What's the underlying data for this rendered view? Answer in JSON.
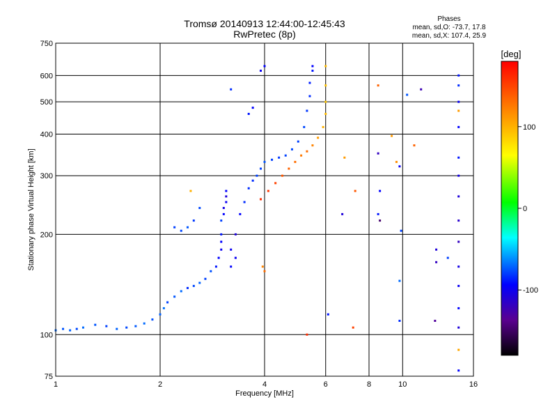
{
  "chart_data": {
    "type": "scatter",
    "title": "Tromsø 20140913 12:44:00-12:45:43",
    "subtitle": "RwPretec (8p)",
    "xlabel": "Frequency [MHz]",
    "ylabel": "Stationary phase Virtual Height [km]",
    "x_scale": "log",
    "y_scale": "log",
    "xlim": [
      1,
      16
    ],
    "ylim": [
      75,
      750
    ],
    "x_ticks": [
      1,
      2,
      4,
      6,
      8,
      10,
      16
    ],
    "y_ticks": [
      75,
      100,
      200,
      300,
      400,
      500,
      600,
      750
    ],
    "grid": true,
    "phases_header": {
      "title": "Phases",
      "line_o": "mean, sd,O: -73.7, 17.8",
      "line_x": "mean, sd,X: 107.4, 25.9"
    },
    "colorbar": {
      "title": "[deg]",
      "range": [
        -180,
        180
      ],
      "ticks": [
        100,
        0,
        -100
      ],
      "tick_labels": [
        "100",
        "0",
        "-100"
      ],
      "colormap": "rainbow"
    },
    "series": [
      {
        "points": [
          [
            1.0,
            103,
            -70
          ],
          [
            1.05,
            104,
            -75
          ],
          [
            1.1,
            103,
            -72
          ],
          [
            1.15,
            104,
            -78
          ],
          [
            1.2,
            105,
            -70
          ],
          [
            1.3,
            107,
            -75
          ],
          [
            1.4,
            106,
            -80
          ],
          [
            1.5,
            104,
            -72
          ],
          [
            1.6,
            105,
            -78
          ],
          [
            1.7,
            106,
            -74
          ],
          [
            1.8,
            108,
            -70
          ],
          [
            1.9,
            111,
            -76
          ],
          [
            2.0,
            115,
            -72
          ],
          [
            2.05,
            120,
            -68
          ],
          [
            2.1,
            125,
            -80
          ],
          [
            2.2,
            130,
            -75
          ],
          [
            2.3,
            135,
            -70
          ],
          [
            2.4,
            138,
            -85
          ],
          [
            2.5,
            140,
            -78
          ],
          [
            2.6,
            143,
            -72
          ],
          [
            2.7,
            147,
            -80
          ],
          [
            2.8,
            155,
            -76
          ],
          [
            2.9,
            160,
            -90
          ],
          [
            2.95,
            170,
            -95
          ],
          [
            3.0,
            180,
            -100
          ],
          [
            3.0,
            190,
            -95
          ],
          [
            3.0,
            200,
            -90
          ],
          [
            3.0,
            220,
            -80
          ],
          [
            3.05,
            230,
            -95
          ],
          [
            3.05,
            240,
            -105
          ],
          [
            3.1,
            250,
            -100
          ],
          [
            3.1,
            260,
            -110
          ],
          [
            3.1,
            270,
            -95
          ],
          [
            3.2,
            180,
            -100
          ],
          [
            3.2,
            160,
            -95
          ],
          [
            3.3,
            170,
            -100
          ],
          [
            3.3,
            200,
            -110
          ],
          [
            3.4,
            230,
            -95
          ],
          [
            3.5,
            250,
            -85
          ],
          [
            3.6,
            275,
            -85
          ],
          [
            3.7,
            290,
            -85
          ],
          [
            3.8,
            300,
            -80
          ],
          [
            3.9,
            315,
            -80
          ],
          [
            4.0,
            330,
            -75
          ],
          [
            4.2,
            335,
            -80
          ],
          [
            4.4,
            340,
            -82
          ],
          [
            4.6,
            345,
            -80
          ],
          [
            4.8,
            360,
            -78
          ],
          [
            5.0,
            380,
            -80
          ],
          [
            5.2,
            420,
            -78
          ],
          [
            5.3,
            470,
            -82
          ],
          [
            5.4,
            520,
            -85
          ],
          [
            5.4,
            570,
            -88
          ],
          [
            5.5,
            620,
            -90
          ],
          [
            5.5,
            640,
            -95
          ],
          [
            2.2,
            210,
            -80
          ],
          [
            2.3,
            205,
            -78
          ],
          [
            2.4,
            210,
            -75
          ],
          [
            2.5,
            220,
            -82
          ],
          [
            2.6,
            240,
            -78
          ]
        ]
      },
      {
        "points": [
          [
            3.9,
            255,
            160
          ],
          [
            4.1,
            270,
            155
          ],
          [
            4.3,
            285,
            150
          ],
          [
            4.5,
            300,
            140
          ],
          [
            4.7,
            315,
            135
          ],
          [
            4.9,
            330,
            130
          ],
          [
            5.1,
            345,
            125
          ],
          [
            5.3,
            355,
            130
          ],
          [
            5.5,
            370,
            120
          ],
          [
            5.7,
            390,
            110
          ],
          [
            5.9,
            420,
            100
          ],
          [
            6.0,
            460,
            95
          ],
          [
            6.0,
            500,
            90
          ],
          [
            6.0,
            560,
            92
          ],
          [
            6.0,
            640,
            95
          ],
          [
            3.95,
            160,
            120
          ],
          [
            4.0,
            155,
            130
          ],
          [
            6.8,
            340,
            110
          ],
          [
            7.3,
            270,
            140
          ],
          [
            8.5,
            560,
            135
          ],
          [
            9.3,
            395,
            110
          ],
          [
            9.6,
            330,
            115
          ],
          [
            10.8,
            370,
            135
          ],
          [
            14.5,
            470,
            110
          ],
          [
            14.5,
            90,
            105
          ],
          [
            5.3,
            100,
            160
          ],
          [
            7.2,
            105,
            150
          ],
          [
            2.45,
            270,
            100
          ]
        ]
      },
      {
        "points": [
          [
            3.6,
            460,
            -90
          ],
          [
            3.7,
            480,
            -95
          ],
          [
            3.9,
            620,
            -100
          ],
          [
            4.0,
            640,
            -95
          ],
          [
            3.2,
            545,
            -85
          ],
          [
            8.5,
            350,
            -120
          ],
          [
            8.6,
            270,
            -95
          ],
          [
            8.5,
            230,
            -90
          ],
          [
            8.6,
            220,
            -150
          ],
          [
            9.8,
            320,
            -100
          ],
          [
            9.9,
            205,
            -80
          ],
          [
            9.8,
            145,
            -70
          ],
          [
            9.8,
            110,
            -85
          ],
          [
            10.3,
            525,
            -75
          ],
          [
            11.3,
            545,
            -125
          ],
          [
            12.5,
            180,
            -110
          ],
          [
            12.5,
            165,
            -120
          ],
          [
            12.4,
            110,
            -135
          ],
          [
            13.5,
            170,
            -80
          ],
          [
            14.5,
            600,
            -90
          ],
          [
            14.5,
            560,
            -85
          ],
          [
            14.5,
            500,
            -100
          ],
          [
            14.5,
            420,
            -95
          ],
          [
            14.5,
            340,
            -90
          ],
          [
            14.5,
            300,
            -105
          ],
          [
            14.5,
            260,
            -110
          ],
          [
            14.5,
            220,
            -115
          ],
          [
            14.5,
            190,
            -120
          ],
          [
            14.5,
            160,
            -105
          ],
          [
            14.5,
            140,
            -100
          ],
          [
            14.5,
            120,
            -95
          ],
          [
            14.5,
            105,
            -110
          ],
          [
            14.5,
            78,
            -95
          ],
          [
            6.7,
            230,
            -110
          ],
          [
            6.1,
            115,
            -90
          ]
        ]
      }
    ]
  }
}
